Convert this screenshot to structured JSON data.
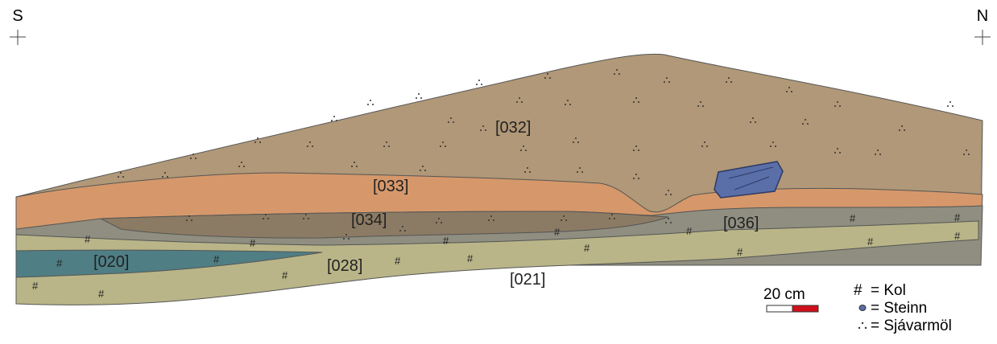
{
  "compass": {
    "left": "S",
    "right": "N"
  },
  "layers": [
    "[032]",
    "[033]",
    "[034]",
    "[036]",
    "[020]",
    "[028]",
    "[021]"
  ],
  "scale_bar": "20 cm",
  "legend": [
    {
      "symbol": "#",
      "label": "= Kol"
    },
    {
      "label": "= Steinn"
    },
    {
      "label": "= Sjávarmöl"
    }
  ]
}
